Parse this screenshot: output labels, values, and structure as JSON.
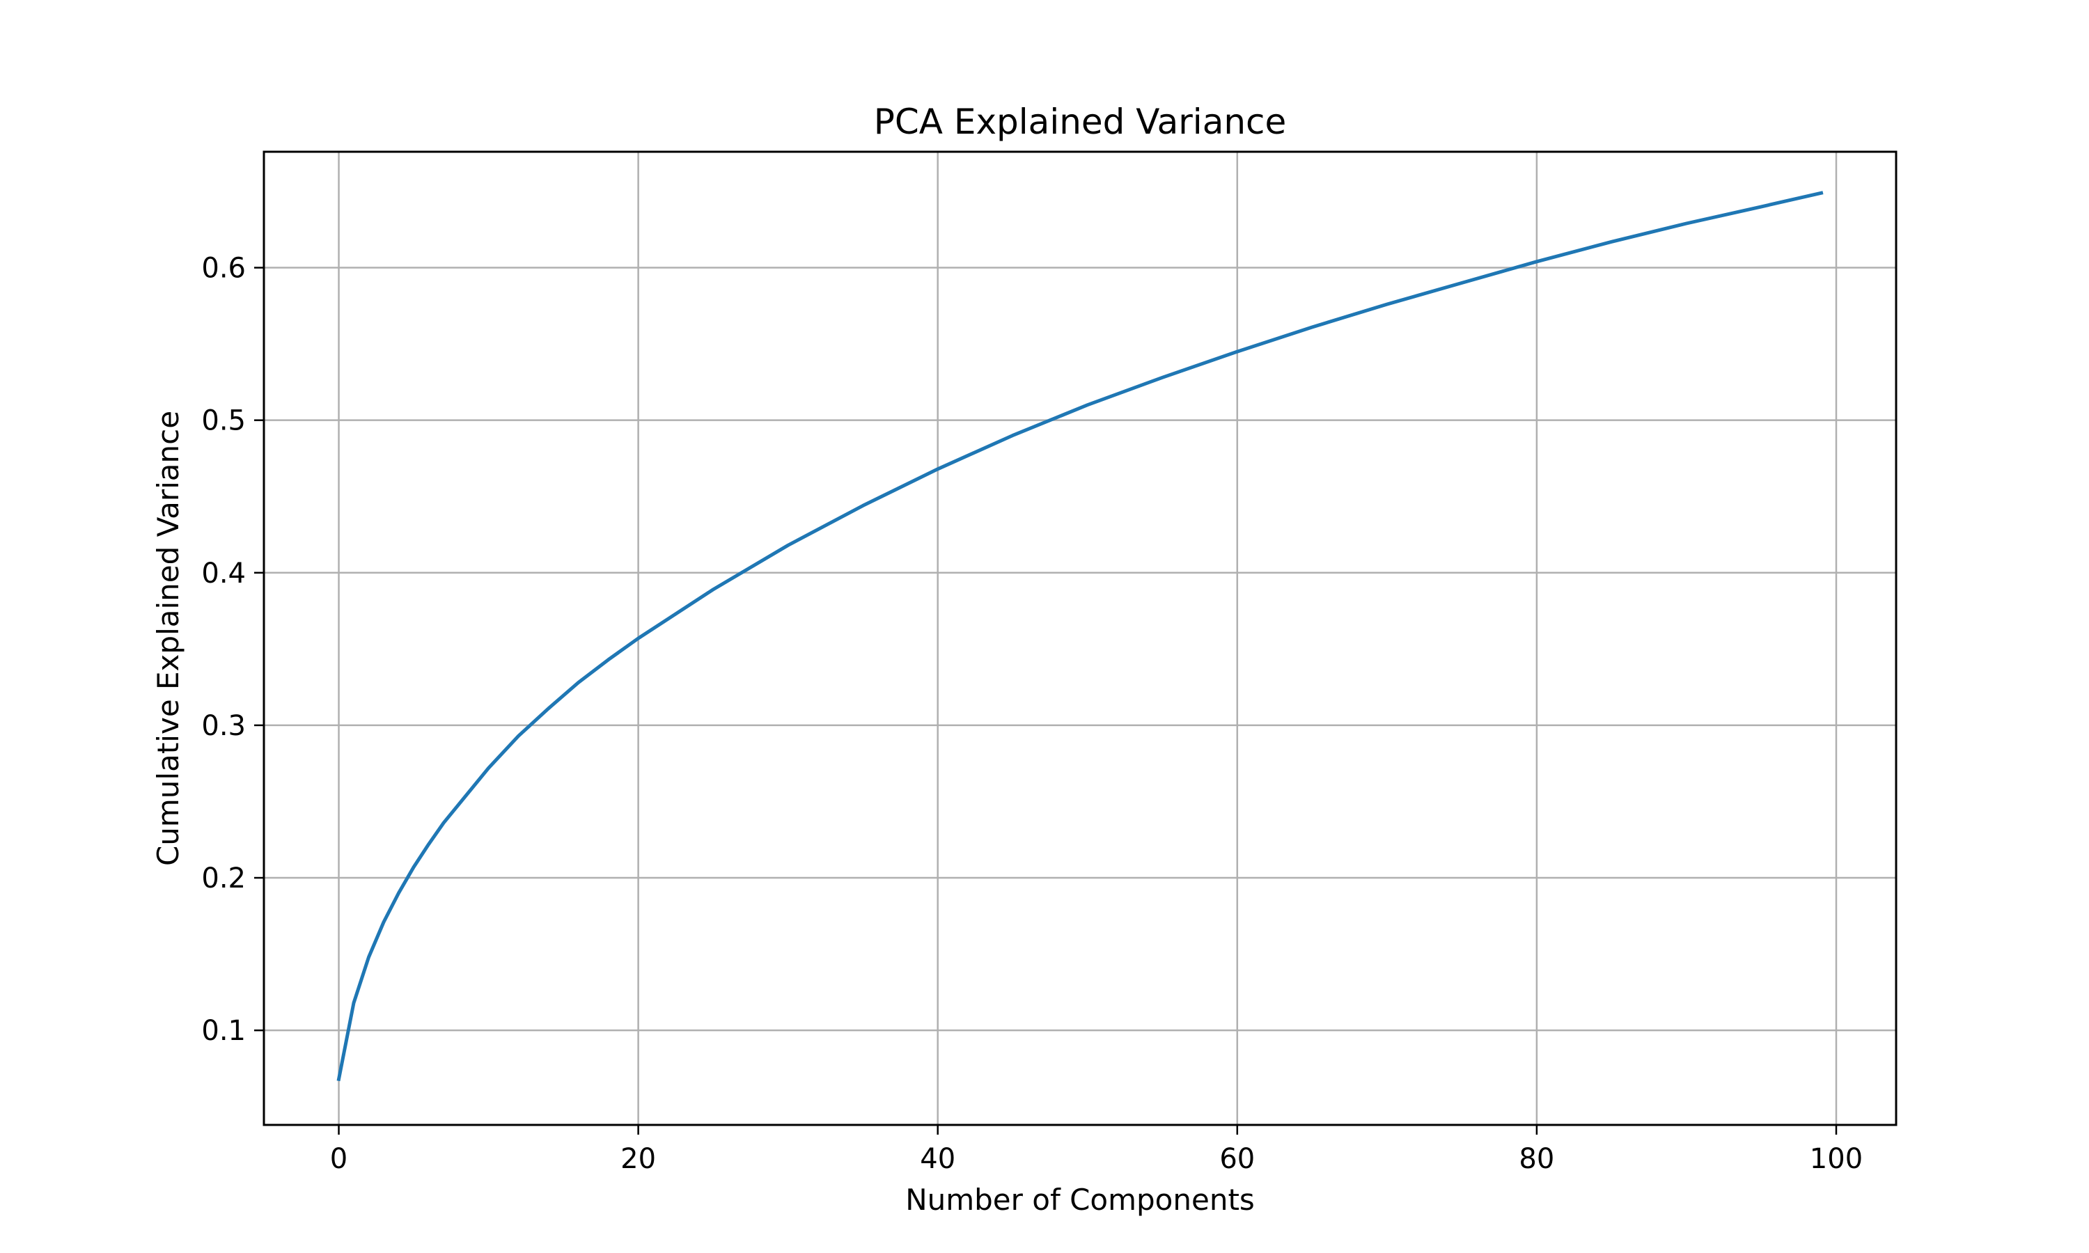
{
  "chart_data": {
    "type": "line",
    "title": "PCA Explained Variance",
    "xlabel": "Number of Components",
    "ylabel": "Cumulative Explained Variance",
    "xlim": [
      -5,
      104
    ],
    "ylim": [
      0.038,
      0.676
    ],
    "xticks": [
      0,
      20,
      40,
      60,
      80,
      100
    ],
    "xtick_labels": [
      "0",
      "20",
      "40",
      "60",
      "80",
      "100"
    ],
    "yticks": [
      0.1,
      0.2,
      0.3,
      0.4,
      0.5,
      0.6
    ],
    "ytick_labels": [
      "0.1",
      "0.2",
      "0.3",
      "0.4",
      "0.5",
      "0.6"
    ],
    "grid": true,
    "legend": "none",
    "series": [
      {
        "color": "#1f77b4",
        "x": [
          0,
          1,
          2,
          3,
          4,
          5,
          6,
          7,
          8,
          10,
          12,
          14,
          16,
          18,
          20,
          25,
          30,
          35,
          40,
          45,
          50,
          55,
          60,
          65,
          70,
          75,
          80,
          85,
          90,
          95,
          99
        ],
        "y": [
          0.068,
          0.118,
          0.148,
          0.171,
          0.19,
          0.207,
          0.222,
          0.236,
          0.248,
          0.272,
          0.293,
          0.311,
          0.328,
          0.343,
          0.357,
          0.389,
          0.418,
          0.444,
          0.468,
          0.49,
          0.51,
          0.528,
          0.545,
          0.561,
          0.576,
          0.59,
          0.604,
          0.617,
          0.629,
          0.64,
          0.649
        ]
      }
    ]
  }
}
